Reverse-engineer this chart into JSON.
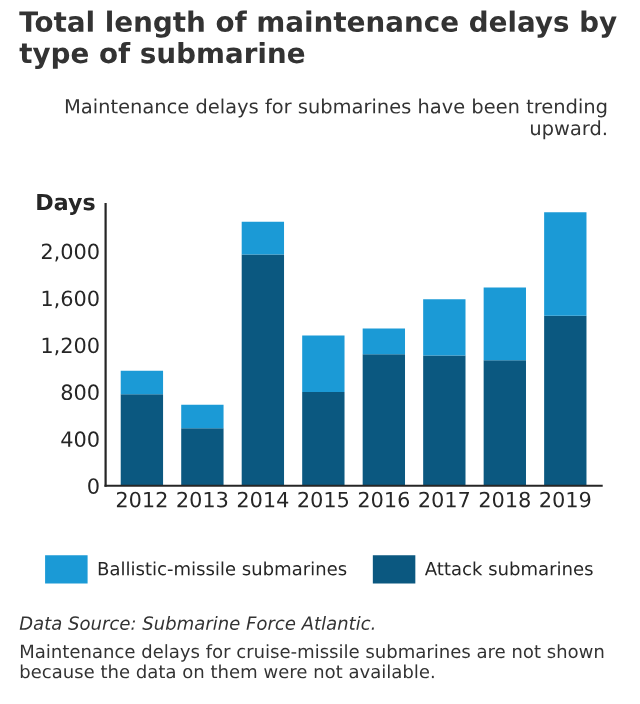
{
  "chart_data": {
    "type": "bar",
    "title": "Total length of maintenance delays by type of submarine",
    "ylabel": "Days",
    "annotations": [
      "Maintenance delays for submarines have been trending upward.",
      "Data Source: Submarine Force Atlantic.",
      "Maintenance delays for cruise-missile submarines are not shown because the data on them were not available."
    ],
    "categories": [
      "2012",
      "2013",
      "2014",
      "2015",
      "2016",
      "2017",
      "2018",
      "2019"
    ],
    "stacked": true,
    "series": [
      {
        "name": "Attack submarines",
        "color": "#0b5880",
        "values": [
          780,
          490,
          1970,
          800,
          1120,
          1110,
          1070,
          1450
        ]
      },
      {
        "name": "Ballistic-missile submarines",
        "color": "#1b9ad6",
        "values": [
          200,
          200,
          280,
          480,
          220,
          480,
          620,
          880
        ]
      }
    ],
    "ylim": [
      0,
      2400
    ],
    "yticks": [
      0,
      {
        "value": 400,
        "label": "400"
      },
      {
        "value": 800,
        "label": "800"
      },
      {
        "value": 1200,
        "label": "1,200"
      },
      {
        "value": 1600,
        "label": "1,600"
      },
      {
        "value": 2000,
        "label": "2,000"
      }
    ],
    "grid": false,
    "legend": "bottom"
  }
}
